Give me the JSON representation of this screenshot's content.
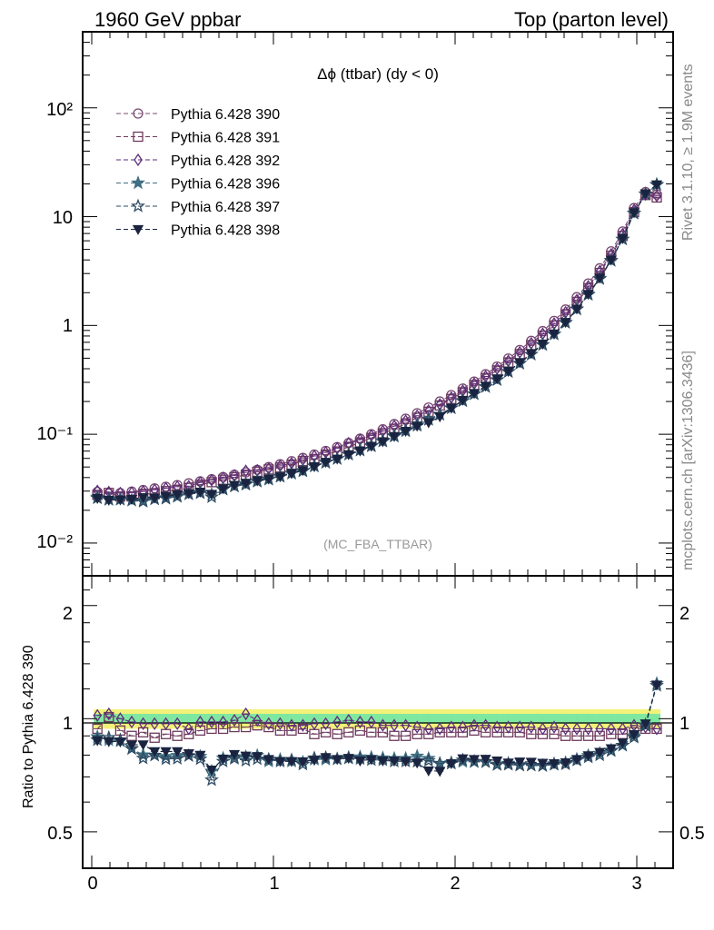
{
  "header": {
    "left": "1960 GeV ppbar",
    "right": "Top (parton level)"
  },
  "side": {
    "rivet": "Rivet 3.1.10, ≥ 1.9M events",
    "mcplots": "mcplots.cern.ch [arXiv:1306.3436]"
  },
  "colors": {
    "s390": "#7a4a72",
    "s391": "#6e3a5c",
    "s392": "#5e2e7a",
    "s396": "#3f6f82",
    "s397": "#2f4a62",
    "s398": "#1a2440",
    "band_yellow": "#f2f27a",
    "band_green": "#7fe8a0"
  },
  "chart_data": [
    {
      "type": "line",
      "title": "Δϕ (ttbar) (dy < 0)",
      "annotation": "(MC_FBA_TTBAR)",
      "yscale": "log",
      "ylim": [
        0.005,
        500
      ],
      "xlim": [
        -0.05,
        3.2
      ],
      "ytick_labels": [
        "10⁻²",
        "10⁻¹",
        "1",
        "10",
        "10²"
      ],
      "legend_placement": "top-left",
      "x": [
        0.031,
        0.094,
        0.157,
        0.22,
        0.283,
        0.346,
        0.408,
        0.471,
        0.534,
        0.597,
        0.66,
        0.723,
        0.785,
        0.848,
        0.911,
        0.974,
        1.037,
        1.1,
        1.162,
        1.225,
        1.288,
        1.351,
        1.414,
        1.477,
        1.539,
        1.602,
        1.665,
        1.728,
        1.791,
        1.854,
        1.916,
        1.979,
        2.042,
        2.105,
        2.168,
        2.231,
        2.293,
        2.356,
        2.419,
        2.482,
        2.545,
        2.608,
        2.67,
        2.733,
        2.796,
        2.859,
        2.922,
        2.985,
        3.048,
        3.11
      ],
      "series": [
        {
          "name": "Pythia 6.428 390",
          "marker": "circle",
          "values": [
            0.0295,
            0.0285,
            0.0288,
            0.0297,
            0.0307,
            0.0318,
            0.0329,
            0.0341,
            0.0354,
            0.0369,
            0.0386,
            0.0404,
            0.0424,
            0.0446,
            0.0471,
            0.0499,
            0.053,
            0.0566,
            0.0606,
            0.0651,
            0.0703,
            0.0762,
            0.0831,
            0.091,
            0.1,
            0.111,
            0.124,
            0.139,
            0.156,
            0.176,
            0.2,
            0.229,
            0.263,
            0.305,
            0.356,
            0.419,
            0.497,
            0.595,
            0.722,
            0.887,
            1.1,
            1.4,
            1.82,
            2.43,
            3.35,
            4.8,
            7.3,
            12.0,
            16.8,
            16.0
          ]
        },
        {
          "name": "Pythia 6.428 391",
          "marker": "square",
          "values": [
            0.0277,
            0.0289,
            0.0268,
            0.0268,
            0.0283,
            0.0283,
            0.03,
            0.0307,
            0.0322,
            0.0344,
            0.0363,
            0.0382,
            0.0402,
            0.0424,
            0.0452,
            0.0475,
            0.0495,
            0.0526,
            0.0567,
            0.0591,
            0.0649,
            0.0695,
            0.0766,
            0.0842,
            0.0925,
            0.102,
            0.112,
            0.125,
            0.142,
            0.161,
            0.184,
            0.211,
            0.243,
            0.283,
            0.328,
            0.386,
            0.457,
            0.545,
            0.659,
            0.806,
            0.999,
            1.26,
            1.64,
            2.19,
            3.03,
            4.36,
            6.65,
            11.0,
            15.8,
            15.0
          ]
        },
        {
          "name": "Pythia 6.428 392",
          "marker": "diamond",
          "values": [
            0.0301,
            0.0294,
            0.0288,
            0.0291,
            0.0298,
            0.0309,
            0.0319,
            0.033,
            0.0333,
            0.0361,
            0.0378,
            0.0397,
            0.0419,
            0.0461,
            0.0466,
            0.0484,
            0.0513,
            0.0542,
            0.0584,
            0.0632,
            0.0682,
            0.0744,
            0.0826,
            0.0892,
            0.0975,
            0.107,
            0.119,
            0.133,
            0.148,
            0.165,
            0.188,
            0.217,
            0.251,
            0.292,
            0.34,
            0.4,
            0.472,
            0.567,
            0.686,
            0.838,
            1.04,
            1.32,
            1.71,
            2.29,
            3.15,
            4.5,
            6.9,
            11.5,
            16.0,
            15.5
          ]
        },
        {
          "name": "Pythia 6.428 396",
          "marker": "star",
          "values": [
            0.0264,
            0.025,
            0.0251,
            0.0247,
            0.0246,
            0.0254,
            0.0261,
            0.0272,
            0.0282,
            0.0293,
            0.028,
            0.0317,
            0.0335,
            0.0353,
            0.0376,
            0.0384,
            0.0413,
            0.0436,
            0.0464,
            0.0507,
            0.0548,
            0.0595,
            0.0656,
            0.072,
            0.0789,
            0.0872,
            0.0972,
            0.109,
            0.124,
            0.138,
            0.152,
            0.175,
            0.202,
            0.234,
            0.273,
            0.317,
            0.378,
            0.449,
            0.543,
            0.666,
            0.835,
            1.07,
            1.42,
            1.94,
            2.71,
            3.96,
            6.2,
            10.8,
            16.2,
            19.8
          ]
        },
        {
          "name": "Pythia 6.428 397",
          "marker": "star-open",
          "values": [
            0.0259,
            0.0254,
            0.0253,
            0.0247,
            0.0241,
            0.0254,
            0.0257,
            0.0267,
            0.0282,
            0.0288,
            0.0265,
            0.0311,
            0.0332,
            0.0345,
            0.0368,
            0.0389,
            0.0408,
            0.044,
            0.0458,
            0.0512,
            0.0554,
            0.0595,
            0.0652,
            0.0712,
            0.0777,
            0.0861,
            0.0955,
            0.107,
            0.12,
            0.136,
            0.152,
            0.174,
            0.204,
            0.235,
            0.273,
            0.316,
            0.375,
            0.447,
            0.542,
            0.664,
            0.83,
            1.06,
            1.41,
            1.92,
            2.68,
            3.94,
            6.2,
            10.7,
            16.1,
            19.6
          ]
        },
        {
          "name": "Pythia 6.428 398",
          "marker": "triangle-down",
          "values": [
            0.0258,
            0.0248,
            0.025,
            0.0253,
            0.0262,
            0.026,
            0.0269,
            0.0279,
            0.0286,
            0.0295,
            0.0282,
            0.0316,
            0.0341,
            0.0355,
            0.0374,
            0.0389,
            0.0408,
            0.0436,
            0.0466,
            0.0505,
            0.0555,
            0.0594,
            0.0652,
            0.0703,
            0.0779,
            0.0858,
            0.0957,
            0.107,
            0.119,
            0.128,
            0.145,
            0.174,
            0.206,
            0.238,
            0.278,
            0.324,
            0.379,
            0.457,
            0.554,
            0.676,
            0.836,
            1.07,
            1.42,
            1.94,
            2.73,
            4.0,
            6.3,
            10.9,
            16.3,
            19.7
          ]
        }
      ]
    },
    {
      "type": "line",
      "ylabel": "Ratio to Pythia 6.428 390",
      "yscale": "log",
      "ylim": [
        0.4,
        2.4
      ],
      "xlim": [
        -0.05,
        3.2
      ],
      "ytick_labels": [
        "0.5",
        "1",
        "2"
      ],
      "xtick_labels": [
        "0",
        "1",
        "2",
        "3"
      ],
      "reference_band": {
        "yellow_halfwidth": 0.06,
        "green_halfwidth": 0.03
      },
      "x": [
        0.031,
        0.094,
        0.157,
        0.22,
        0.283,
        0.346,
        0.408,
        0.471,
        0.534,
        0.597,
        0.66,
        0.723,
        0.785,
        0.848,
        0.911,
        0.974,
        1.037,
        1.1,
        1.162,
        1.225,
        1.288,
        1.351,
        1.414,
        1.477,
        1.539,
        1.602,
        1.665,
        1.728,
        1.791,
        1.854,
        1.916,
        1.979,
        2.042,
        2.105,
        2.168,
        2.231,
        2.293,
        2.356,
        2.419,
        2.482,
        2.545,
        2.608,
        2.67,
        2.733,
        2.796,
        2.859,
        2.922,
        2.985,
        3.048,
        3.11
      ],
      "series": [
        {
          "name": "Pythia 6.428 391",
          "marker": "square",
          "values": [
            0.94,
            1.01,
            0.93,
            0.9,
            0.92,
            0.89,
            0.91,
            0.9,
            0.91,
            0.93,
            0.94,
            0.94,
            0.95,
            0.95,
            0.96,
            0.95,
            0.93,
            0.93,
            0.94,
            0.91,
            0.92,
            0.91,
            0.92,
            0.93,
            0.92,
            0.92,
            0.9,
            0.9,
            0.91,
            0.91,
            0.92,
            0.92,
            0.92,
            0.93,
            0.92,
            0.92,
            0.92,
            0.92,
            0.91,
            0.91,
            0.91,
            0.9,
            0.9,
            0.9,
            0.9,
            0.91,
            0.91,
            0.92,
            0.94,
            0.94
          ]
        },
        {
          "name": "Pythia 6.428 392",
          "marker": "diamond",
          "values": [
            1.02,
            1.03,
            1.0,
            0.98,
            0.97,
            0.97,
            0.97,
            0.97,
            0.94,
            0.98,
            0.98,
            0.98,
            0.99,
            1.03,
            0.99,
            0.97,
            0.97,
            0.96,
            0.96,
            0.97,
            0.97,
            0.98,
            0.99,
            0.98,
            0.98,
            0.96,
            0.96,
            0.96,
            0.95,
            0.94,
            0.94,
            0.95,
            0.95,
            0.96,
            0.96,
            0.95,
            0.95,
            0.95,
            0.95,
            0.94,
            0.95,
            0.94,
            0.94,
            0.94,
            0.94,
            0.94,
            0.94,
            0.96,
            0.95,
            0.94
          ]
        },
        {
          "name": "Pythia 6.428 396",
          "marker": "star",
          "values": [
            0.895,
            0.877,
            0.872,
            0.832,
            0.801,
            0.799,
            0.793,
            0.798,
            0.797,
            0.794,
            0.725,
            0.785,
            0.79,
            0.792,
            0.798,
            0.77,
            0.779,
            0.77,
            0.766,
            0.779,
            0.779,
            0.781,
            0.789,
            0.791,
            0.789,
            0.786,
            0.784,
            0.784,
            0.795,
            0.784,
            0.76,
            0.764,
            0.768,
            0.767,
            0.767,
            0.757,
            0.761,
            0.755,
            0.752,
            0.751,
            0.759,
            0.764,
            0.78,
            0.798,
            0.809,
            0.825,
            0.849,
            0.9,
            0.964,
            1.24
          ]
        },
        {
          "name": "Pythia 6.428 397",
          "marker": "star-open",
          "values": [
            0.878,
            0.891,
            0.878,
            0.832,
            0.785,
            0.799,
            0.781,
            0.783,
            0.797,
            0.781,
            0.687,
            0.77,
            0.783,
            0.774,
            0.781,
            0.78,
            0.77,
            0.777,
            0.756,
            0.786,
            0.788,
            0.781,
            0.785,
            0.782,
            0.777,
            0.776,
            0.77,
            0.77,
            0.769,
            0.773,
            0.76,
            0.76,
            0.776,
            0.77,
            0.767,
            0.754,
            0.755,
            0.751,
            0.751,
            0.749,
            0.755,
            0.757,
            0.775,
            0.79,
            0.8,
            0.821,
            0.849,
            0.892,
            0.958,
            1.225
          ]
        },
        {
          "name": "Pythia 6.428 398",
          "marker": "triangle-down",
          "values": [
            0.875,
            0.87,
            0.868,
            0.852,
            0.853,
            0.818,
            0.818,
            0.818,
            0.808,
            0.8,
            0.731,
            0.782,
            0.804,
            0.796,
            0.794,
            0.78,
            0.77,
            0.77,
            0.769,
            0.776,
            0.789,
            0.78,
            0.785,
            0.773,
            0.779,
            0.773,
            0.772,
            0.77,
            0.763,
            0.727,
            0.725,
            0.76,
            0.783,
            0.78,
            0.781,
            0.773,
            0.763,
            0.768,
            0.767,
            0.762,
            0.76,
            0.764,
            0.78,
            0.798,
            0.815,
            0.833,
            0.863,
            0.908,
            0.97,
            1.231
          ]
        }
      ]
    }
  ]
}
